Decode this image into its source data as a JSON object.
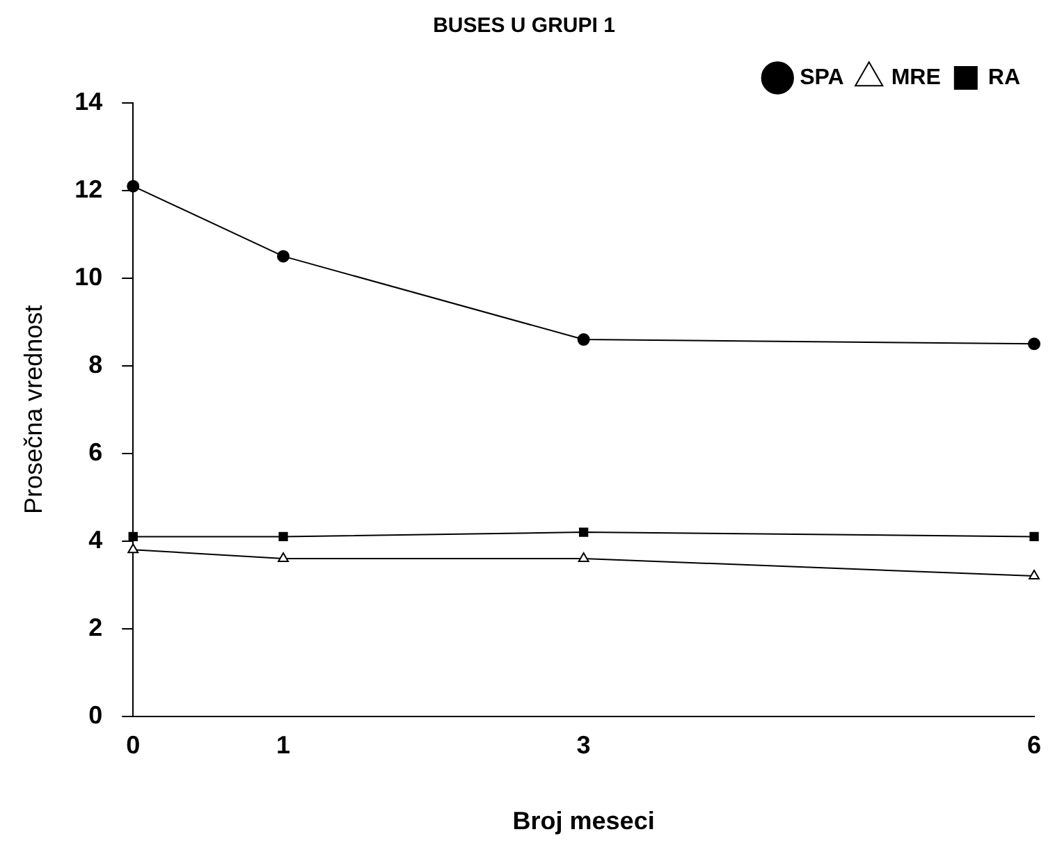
{
  "chart_data": {
    "type": "line",
    "title": "BUSES U GRUPI 1",
    "xlabel": "Broj meseci",
    "ylabel": "Prosečna vrednost",
    "x": [
      0,
      1,
      3,
      6
    ],
    "xlim": [
      0,
      6
    ],
    "xticks": [
      0,
      1,
      3,
      6
    ],
    "ylim": [
      0,
      14
    ],
    "yticks": [
      0,
      2,
      4,
      6,
      8,
      10,
      12,
      14
    ],
    "grid": false,
    "legend": "top right",
    "line_style": "solid",
    "series": [
      {
        "name": "SPA",
        "color": "#000000",
        "marker": "circle",
        "values": [
          12.1,
          10.5,
          8.6,
          8.5
        ]
      },
      {
        "name": "MRE",
        "color": "#000000",
        "marker": "triangle",
        "values": [
          3.8,
          3.6,
          3.6,
          3.2
        ]
      },
      {
        "name": "RA",
        "color": "#000000",
        "marker": "square",
        "values": [
          4.1,
          4.1,
          4.2,
          4.1
        ]
      }
    ]
  }
}
